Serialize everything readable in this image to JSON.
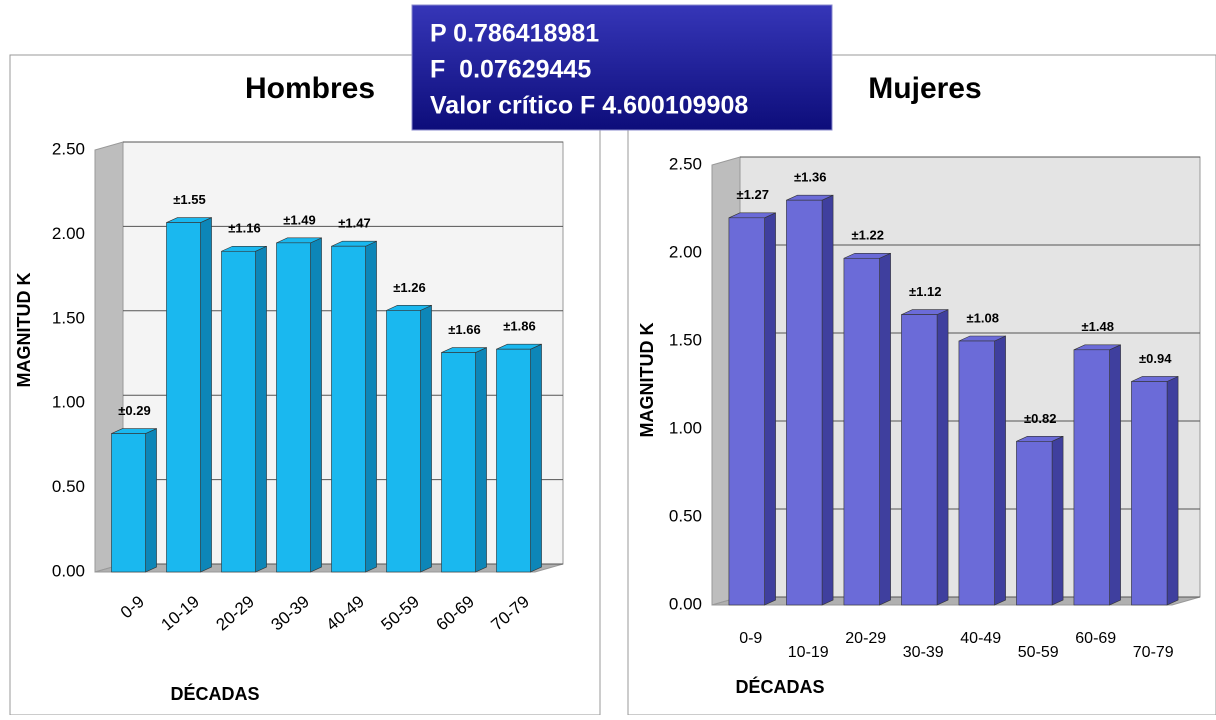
{
  "stats_box": {
    "lines": [
      "P 0.786418981",
      "F  0.07629445",
      "Valor crítico F 4.600109908"
    ]
  },
  "chart_data": [
    {
      "type": "bar",
      "title": "Hombres",
      "y_label": "MAGNITUD K",
      "x_label": "DÉCADAS",
      "categories": [
        "0-9",
        "10-19",
        "20-29",
        "30-39",
        "40-49",
        "50-59",
        "60-69",
        "70-79"
      ],
      "values": [
        0.82,
        2.07,
        1.9,
        1.95,
        1.93,
        1.55,
        1.3,
        1.32
      ],
      "error_labels": [
        "±0.29",
        "±1.55",
        "±1.16",
        "±1.49",
        "±1.47",
        "±1.26",
        "±1.66",
        "±1.86"
      ],
      "color": "#1ab8ef",
      "side_color": "#0d86b8",
      "ylim": [
        0,
        2.5
      ],
      "yticks": [
        {
          "value": 0,
          "label": "0.00"
        },
        {
          "value": 0.5,
          "label": "0.50"
        },
        {
          "value": 1,
          "label": "1.00"
        },
        {
          "value": 1.5,
          "label": "1.50"
        },
        {
          "value": 2,
          "label": "2.00"
        },
        {
          "value": 2.5,
          "label": "2.50"
        }
      ],
      "grid": true
    },
    {
      "type": "bar",
      "title": "Mujeres",
      "y_label": "MAGNITUD K",
      "x_label": "DÉCADAS",
      "categories": [
        "0-9",
        "10-19",
        "20-29",
        "30-39",
        "40-49",
        "50-59",
        "60-69",
        "70-79"
      ],
      "values": [
        2.2,
        2.3,
        1.97,
        1.65,
        1.5,
        0.93,
        1.45,
        1.27
      ],
      "error_labels": [
        "±1.27",
        "±1.36",
        "±1.22",
        "±1.12",
        "±1.08",
        "±0.82",
        "±1.48",
        "±0.94"
      ],
      "color": "#6b6bd8",
      "side_color": "#3f3f9e",
      "ylim": [
        0,
        2.5
      ],
      "yticks": [
        {
          "value": 0,
          "label": "0.00"
        },
        {
          "value": 0.5,
          "label": "0.50"
        },
        {
          "value": 1,
          "label": "1.00"
        },
        {
          "value": 1.5,
          "label": "1.50"
        },
        {
          "value": 2,
          "label": "2.00"
        },
        {
          "value": 2.5,
          "label": "2.50"
        }
      ],
      "grid": true
    }
  ]
}
